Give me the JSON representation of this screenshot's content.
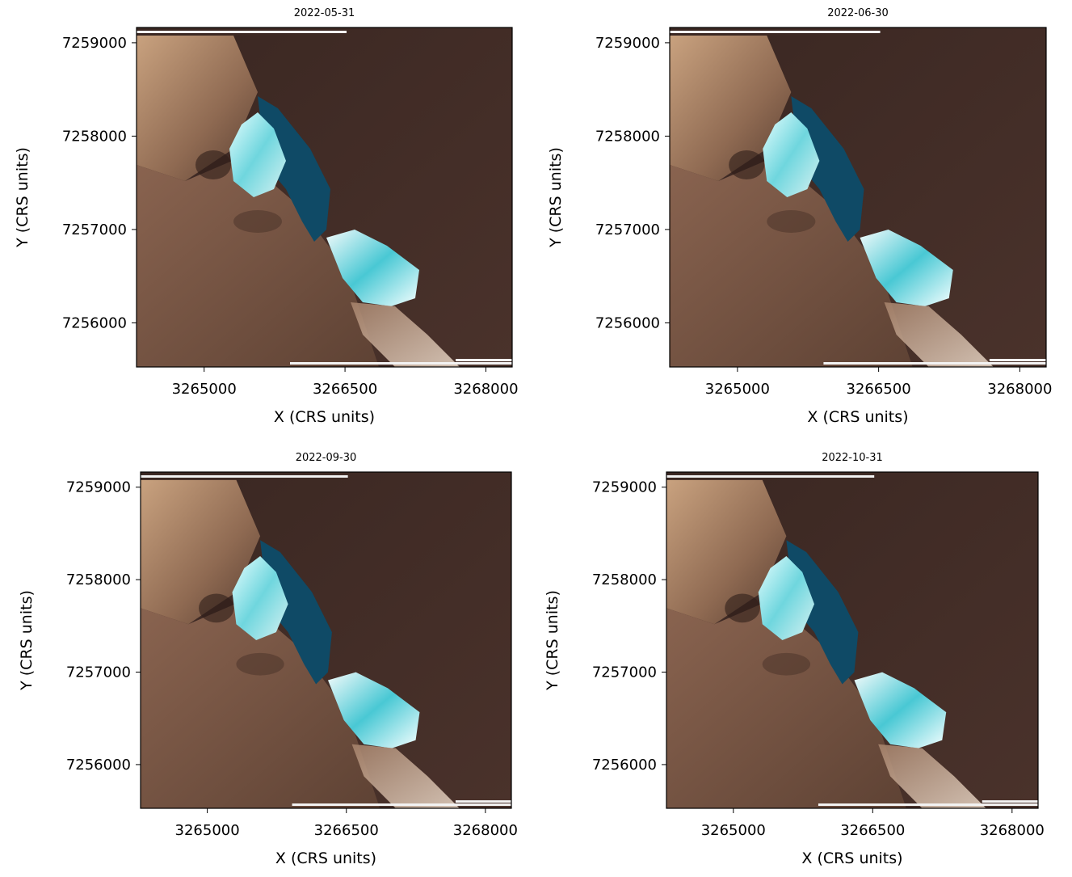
{
  "panels": [
    {
      "title": "2022-05-31",
      "xlabel": "X (CRS units)",
      "ylabel": "Y (CRS units)",
      "xticks": [
        "3265000",
        "3266500",
        "3268000"
      ],
      "yticks": [
        "7259000",
        "7258000",
        "7257000",
        "7256000"
      ]
    },
    {
      "title": "2022-06-30",
      "xlabel": "X (CRS units)",
      "ylabel": "Y (CRS units)",
      "xticks": [
        "3265000",
        "3266500",
        "3268000"
      ],
      "yticks": [
        "7259000",
        "7258000",
        "7257000",
        "7256000"
      ]
    },
    {
      "title": "2022-09-30",
      "xlabel": "X (CRS units)",
      "ylabel": "Y (CRS units)",
      "xticks": [
        "3265000",
        "3266500",
        "3268000"
      ],
      "yticks": [
        "7259000",
        "7258000",
        "7257000",
        "7256000"
      ]
    },
    {
      "title": "2022-10-31",
      "xlabel": "X (CRS units)",
      "ylabel": "Y (CRS units)",
      "xticks": [
        "3265000",
        "3266500",
        "3268000"
      ],
      "yticks": [
        "7259000",
        "7258000",
        "7257000",
        "7256000"
      ]
    }
  ],
  "colors": {
    "background_dark": "#3f2b25",
    "sand": "#b48d6e",
    "water": "#0f4a66",
    "turquoise": "#5fd0d8",
    "salt_white": "#eef6f6"
  }
}
